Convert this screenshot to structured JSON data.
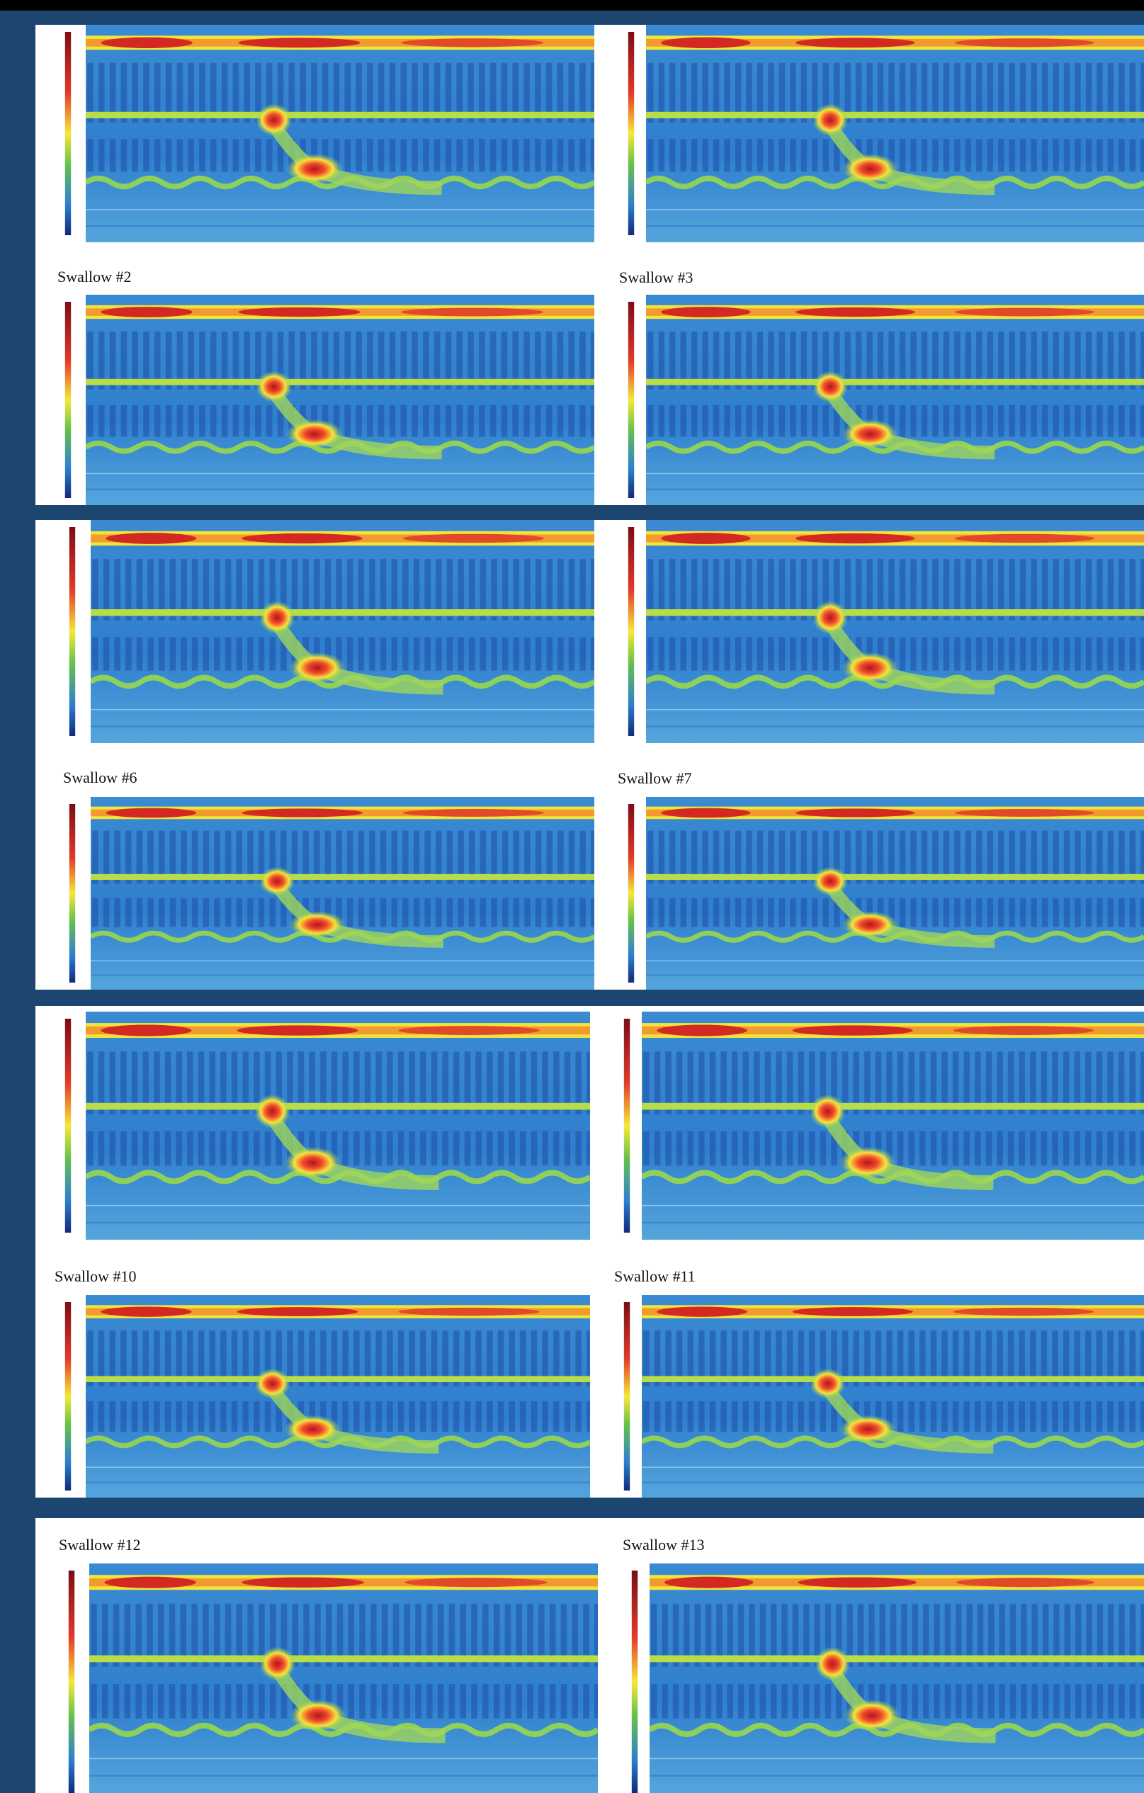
{
  "captions": [
    "Swallow #2",
    "Swallow #3",
    "Swallow #6",
    "Swallow #7",
    "Swallow #10",
    "Swallow #11",
    "Swallow #12",
    "Swallow #13"
  ]
}
